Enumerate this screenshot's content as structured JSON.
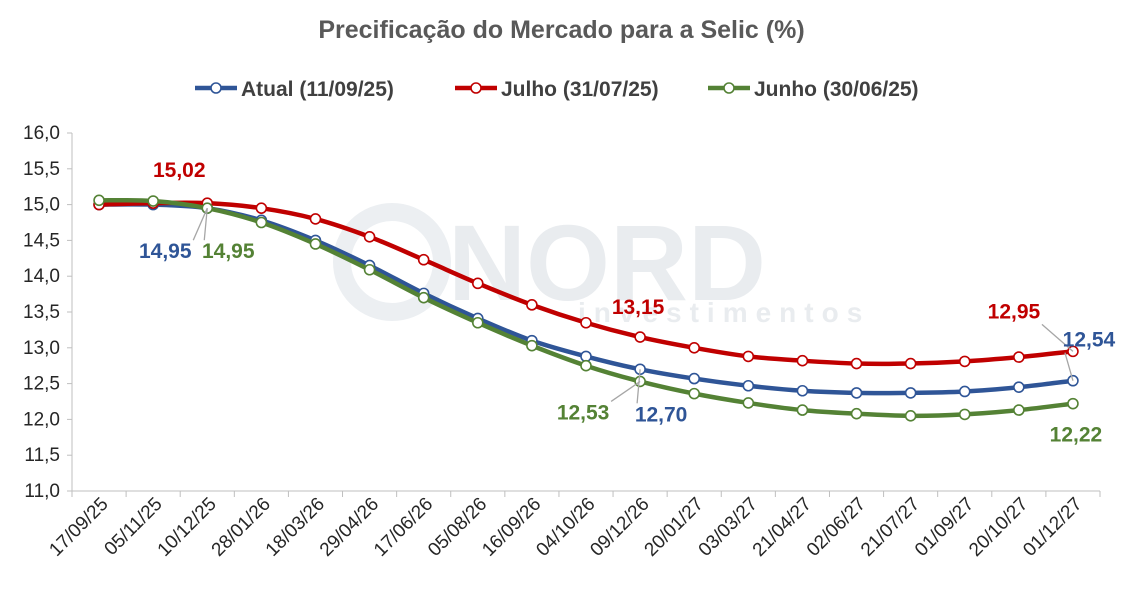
{
  "chart_data": {
    "type": "line",
    "title": "Precificação do Mercado para a Selic (%)",
    "watermark": "NORD",
    "watermark_sub": "investimentos",
    "categories": [
      "17/09/25",
      "05/11/25",
      "10/12/25",
      "28/01/26",
      "18/03/26",
      "29/04/26",
      "17/06/26",
      "05/08/26",
      "16/09/26",
      "04/10/26",
      "09/12/26",
      "20/01/27",
      "03/03/27",
      "21/04/27",
      "02/06/27",
      "21/07/27",
      "01/09/27",
      "20/10/27",
      "01/12/27"
    ],
    "ylim": [
      11.0,
      16.0
    ],
    "yticks": [
      "11,0",
      "11,5",
      "12,0",
      "12,5",
      "13,0",
      "13,5",
      "14,0",
      "14,5",
      "15,0",
      "15,5",
      "16,0"
    ],
    "grid": false,
    "legend_position": "top",
    "series": [
      {
        "name": "Atual (11/09/25)",
        "color": "#2F5597",
        "values": [
          15.0,
          15.0,
          14.95,
          14.78,
          14.5,
          14.15,
          13.76,
          13.41,
          13.1,
          12.88,
          12.7,
          12.57,
          12.47,
          12.4,
          12.37,
          12.37,
          12.39,
          12.45,
          12.54
        ]
      },
      {
        "name": "Julho (31/07/25)",
        "color": "#C00000",
        "values": [
          15.0,
          15.02,
          15.02,
          14.95,
          14.8,
          14.55,
          14.23,
          13.9,
          13.6,
          13.35,
          13.15,
          13.0,
          12.88,
          12.82,
          12.78,
          12.78,
          12.81,
          12.87,
          12.95
        ]
      },
      {
        "name": "Junho (30/06/25)",
        "color": "#548235",
        "values": [
          15.06,
          15.05,
          14.95,
          14.75,
          14.45,
          14.09,
          13.7,
          13.35,
          13.03,
          12.75,
          12.53,
          12.36,
          12.23,
          12.13,
          12.08,
          12.05,
          12.07,
          12.13,
          12.22
        ]
      }
    ],
    "annotations": [
      {
        "text": "15,02",
        "series": 1,
        "point": 2
      },
      {
        "text": "14,95",
        "series": 0,
        "point": 2
      },
      {
        "text": "14,95",
        "series": 2,
        "point": 2
      },
      {
        "text": "13,15",
        "series": 1,
        "point": 10
      },
      {
        "text": "12,53",
        "series": 2,
        "point": 10
      },
      {
        "text": "12,70",
        "series": 0,
        "point": 10
      },
      {
        "text": "12,95",
        "series": 1,
        "point": 18
      },
      {
        "text": "12,54",
        "series": 0,
        "point": 18
      },
      {
        "text": "12,22",
        "series": 2,
        "point": 18
      }
    ]
  }
}
